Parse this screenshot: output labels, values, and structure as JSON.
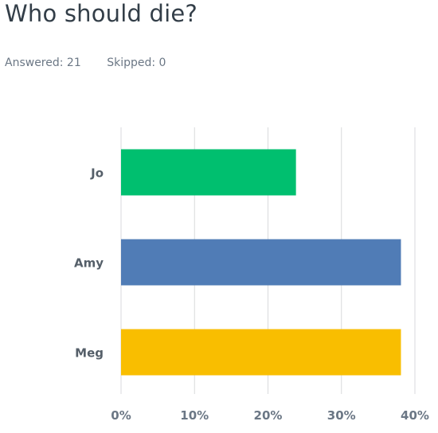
{
  "header": {
    "title": "Who should die?",
    "answered_label": "Answered: 21",
    "skipped_label": "Skipped: 0"
  },
  "chart_data": {
    "type": "bar",
    "orientation": "horizontal",
    "categories": [
      "Jo",
      "Amy",
      "Meg"
    ],
    "values": [
      23.81,
      38.1,
      38.1
    ],
    "colors": [
      "#00bf6f",
      "#507cb6",
      "#f9be00"
    ],
    "xlim": [
      0,
      40
    ],
    "xticks": [
      "0%",
      "10%",
      "20%",
      "30%",
      "40%"
    ],
    "grid": true,
    "legend": "none"
  }
}
